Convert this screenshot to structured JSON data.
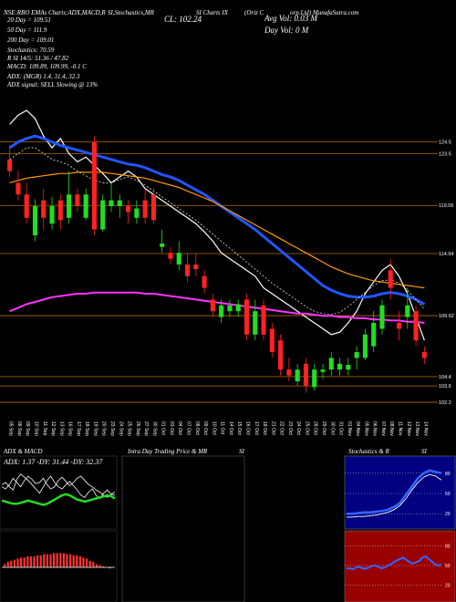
{
  "header": {
    "left_info": "NSE:RBO EMAs Charts:ADX,MACD,R",
    "mid_info": "SI,Stochastics,MR",
    "mid_info2": "SI Charts IX",
    "company": "(Oriz C",
    "site": "orp.Ltd) MunafaSutra.com",
    "close_label": "CL: 102.24",
    "avg_vol": "Avg Vol: 0.03 M",
    "day_vol": "Day Vol: 0   M",
    "ema20": "20  Day = 109.51",
    "ema50": "50  Day = 111.9",
    "ema200": "200  Day = 109.01",
    "stoch": "Stochastics: 70.59",
    "rsi_line": "R                   SI 14/5: 51.36  / 47.82",
    "macd": "MACD: 109.89,  109.99,  -0.1 C",
    "adx1": "ADX:                          (MGR) 1.4,  31.4,  32.3",
    "adx2": "ADX  signal: SELL  Slowing @ 13%"
  },
  "panels": {
    "adx_title": "ADX  & MACD",
    "adx_values": "ADX: 1.37  -DY: 31.44  -DY: 32.37",
    "intraday_title": "Intra  Day Trading Price  & MR",
    "intraday_si": "SI",
    "stoch_title": "Stochastics & R",
    "stoch_si": "SI"
  },
  "colors": {
    "up": "#22dd22",
    "down": "#ff2222",
    "ema20": "#ffffff",
    "ema50": "#2255ff",
    "ema100": "#ff9900",
    "ema200": "#ff33ff",
    "level_line": "#b36b00",
    "stoch_bg": "#000080",
    "rsi_bg": "#990000"
  },
  "chart_data": [
    {
      "type": "candlestick",
      "price_levels": [
        124.5,
        123.5,
        119.06,
        114.94,
        109.62,
        104.4,
        103.6,
        102.2
      ],
      "x_dates": [
        "05 Sep",
        "06 Sep",
        "09 Sep",
        "10 Sep",
        "11 Sep",
        "12 Sep",
        "13 Sep",
        "16 Sep",
        "17 Sep",
        "18 Sep",
        "19 Sep",
        "20 Sep",
        "23 Sep",
        "24 Sep",
        "25 Sep",
        "26 Sep",
        "27 Sep",
        "30 Sep",
        "01 Oct",
        "03 Oct",
        "04 Oct",
        "07 Oct",
        "08 Oct",
        "09 Oct",
        "10 Oct",
        "11 Oct",
        "14 Oct",
        "15 Oct",
        "16 Oct",
        "17 Oct",
        "18 Oct",
        "21 Oct",
        "22 Oct",
        "23 Oct",
        "24 Oct",
        "25 Oct",
        "28 Oct",
        "29 Oct",
        "30 Oct",
        "31 Oct",
        "01 Nov",
        "04 Nov",
        "05 Nov",
        "06 Nov",
        "07 Nov",
        "08 Nov",
        "11 Nov",
        "12 Nov",
        "13 Nov",
        "14 Nov"
      ],
      "candles": [
        {
          "o": 123.0,
          "h": 124.2,
          "l": 121.5,
          "c": 122.0
        },
        {
          "o": 121.0,
          "h": 122.0,
          "l": 119.5,
          "c": 120.0
        },
        {
          "o": 120.0,
          "h": 121.0,
          "l": 117.5,
          "c": 118.0
        },
        {
          "o": 116.5,
          "h": 119.6,
          "l": 116.0,
          "c": 119.0
        },
        {
          "o": 119.5,
          "h": 120.5,
          "l": 117.0,
          "c": 118.0
        },
        {
          "o": 117.5,
          "h": 119.8,
          "l": 117.0,
          "c": 119.0
        },
        {
          "o": 119.5,
          "h": 120.0,
          "l": 117.0,
          "c": 117.8
        },
        {
          "o": 118.0,
          "h": 122.0,
          "l": 117.5,
          "c": 120.0
        },
        {
          "o": 120.0,
          "h": 120.5,
          "l": 118.5,
          "c": 119.0
        },
        {
          "o": 118.0,
          "h": 120.5,
          "l": 117.8,
          "c": 120.0
        },
        {
          "o": 124.5,
          "h": 125.0,
          "l": 116.5,
          "c": 117.0
        },
        {
          "o": 117.0,
          "h": 120.0,
          "l": 116.8,
          "c": 119.5
        },
        {
          "o": 119.0,
          "h": 121.0,
          "l": 118.5,
          "c": 119.5
        },
        {
          "o": 119.0,
          "h": 120.0,
          "l": 118.0,
          "c": 119.5
        },
        {
          "o": 119.0,
          "h": 119.5,
          "l": 117.5,
          "c": 118.5
        },
        {
          "o": 118.0,
          "h": 119.5,
          "l": 117.5,
          "c": 118.8
        },
        {
          "o": 119.5,
          "h": 120.5,
          "l": 117.5,
          "c": 118.0
        },
        {
          "o": 120.0,
          "h": 120.5,
          "l": 117.5,
          "c": 117.8
        },
        {
          "o": 115.5,
          "h": 117.0,
          "l": 115.0,
          "c": 115.8
        },
        {
          "o": 115.0,
          "h": 115.5,
          "l": 114.0,
          "c": 114.5
        },
        {
          "o": 114.0,
          "h": 116.0,
          "l": 113.5,
          "c": 115.0
        },
        {
          "o": 114.0,
          "h": 115.0,
          "l": 112.5,
          "c": 113.0
        },
        {
          "o": 114.0,
          "h": 115.0,
          "l": 113.0,
          "c": 113.6
        },
        {
          "o": 113.0,
          "h": 113.5,
          "l": 111.5,
          "c": 112.0
        },
        {
          "o": 111.0,
          "h": 111.5,
          "l": 109.5,
          "c": 110.0
        },
        {
          "o": 109.5,
          "h": 111.0,
          "l": 109.0,
          "c": 110.5
        },
        {
          "o": 110.0,
          "h": 111.0,
          "l": 109.5,
          "c": 110.5
        },
        {
          "o": 110.0,
          "h": 111.0,
          "l": 109.5,
          "c": 110.6
        },
        {
          "o": 111.0,
          "h": 111.5,
          "l": 107.5,
          "c": 108.0
        },
        {
          "o": 108.0,
          "h": 111.0,
          "l": 107.5,
          "c": 110.0
        },
        {
          "o": 110.5,
          "h": 111.0,
          "l": 107.5,
          "c": 108.0
        },
        {
          "o": 108.5,
          "h": 109.0,
          "l": 106.0,
          "c": 106.5
        },
        {
          "o": 107.5,
          "h": 108.0,
          "l": 104.5,
          "c": 105.0
        },
        {
          "o": 105.0,
          "h": 106.0,
          "l": 104.0,
          "c": 104.5
        },
        {
          "o": 104.0,
          "h": 105.5,
          "l": 103.6,
          "c": 105.0
        },
        {
          "o": 105.5,
          "h": 106.0,
          "l": 103.0,
          "c": 103.6
        },
        {
          "o": 103.5,
          "h": 105.5,
          "l": 103.2,
          "c": 105.0
        },
        {
          "o": 104.8,
          "h": 105.5,
          "l": 104.2,
          "c": 105.0
        },
        {
          "o": 105.0,
          "h": 106.5,
          "l": 104.5,
          "c": 106.0
        },
        {
          "o": 105.0,
          "h": 106.0,
          "l": 104.5,
          "c": 105.5
        },
        {
          "o": 105.0,
          "h": 106.0,
          "l": 104.5,
          "c": 105.4
        },
        {
          "o": 106.0,
          "h": 107.0,
          "l": 105.0,
          "c": 106.5
        },
        {
          "o": 106.0,
          "h": 108.5,
          "l": 105.8,
          "c": 108.0
        },
        {
          "o": 107.0,
          "h": 110.0,
          "l": 106.5,
          "c": 109.0
        },
        {
          "o": 108.5,
          "h": 111.0,
          "l": 108.0,
          "c": 110.5
        },
        {
          "o": 113.5,
          "h": 114.5,
          "l": 111.0,
          "c": 112.0
        },
        {
          "o": 109.0,
          "h": 110.0,
          "l": 107.5,
          "c": 108.5
        },
        {
          "o": 109.5,
          "h": 112.0,
          "l": 108.5,
          "c": 110.5
        },
        {
          "o": 110.0,
          "h": 110.5,
          "l": 107.0,
          "c": 107.5
        },
        {
          "o": 106.5,
          "h": 107.0,
          "l": 105.5,
          "c": 106.0
        }
      ],
      "ylim": [
        101.5,
        126.5
      ]
    },
    {
      "type": "line",
      "series": [
        {
          "values": [
            126.0,
            126.8,
            127.2,
            126.5,
            125.0,
            124.0,
            124.8,
            123.5,
            122.8,
            123.2,
            122.5,
            121.8,
            121.0,
            121.5,
            122.0,
            121.5,
            120.5,
            120.0,
            119.5,
            119.0,
            118.5,
            118.0,
            117.5,
            116.8,
            116.0,
            115.0,
            114.5,
            114.0,
            113.5,
            113.0,
            112.0,
            111.5,
            111.0,
            110.5,
            110.0,
            109.5,
            109.0,
            108.5,
            108.0,
            108.2,
            109.0,
            110.0,
            111.5,
            112.5,
            113.5,
            114.0,
            113.0,
            111.5,
            109.5,
            107.5
          ]
        },
        {
          "values": [
            124.0,
            124.5,
            124.8,
            125.0,
            124.8,
            124.5,
            124.2,
            124.0,
            123.8,
            123.6,
            123.4,
            123.2,
            123.0,
            122.8,
            122.6,
            122.5,
            122.3,
            122.0,
            121.7,
            121.5,
            121.2,
            120.8,
            120.4,
            120.0,
            119.5,
            119.0,
            118.5,
            118.0,
            117.5,
            117.0,
            116.4,
            115.8,
            115.2,
            114.6,
            114.0,
            113.4,
            112.8,
            112.2,
            111.8,
            111.5,
            111.3,
            111.2,
            111.2,
            111.3,
            111.5,
            111.6,
            111.5,
            111.3,
            111.0,
            110.6
          ]
        },
        {
          "values": [
            121.0,
            121.2,
            121.4,
            121.5,
            121.6,
            121.7,
            121.8,
            121.8,
            121.9,
            121.9,
            121.9,
            121.9,
            121.8,
            121.7,
            121.6,
            121.5,
            121.4,
            121.2,
            121.0,
            120.8,
            120.6,
            120.3,
            120.0,
            119.7,
            119.4,
            119.0,
            118.6,
            118.2,
            117.8,
            117.4,
            117.0,
            116.6,
            116.2,
            115.8,
            115.4,
            115.0,
            114.6,
            114.2,
            113.8,
            113.5,
            113.2,
            113.0,
            112.8,
            112.6,
            112.5,
            112.4,
            112.3,
            112.2,
            112.1,
            112.0
          ]
        },
        {
          "values": [
            110.0,
            110.3,
            110.6,
            110.8,
            111.0,
            111.2,
            111.3,
            111.4,
            111.5,
            111.5,
            111.6,
            111.6,
            111.6,
            111.6,
            111.6,
            111.6,
            111.5,
            111.5,
            111.4,
            111.3,
            111.2,
            111.1,
            111.0,
            110.9,
            110.8,
            110.7,
            110.6,
            110.5,
            110.4,
            110.3,
            110.2,
            110.1,
            110.0,
            109.9,
            109.8,
            109.8,
            109.7,
            109.6,
            109.6,
            109.5,
            109.5,
            109.4,
            109.4,
            109.3,
            109.3,
            109.2,
            109.2,
            109.1,
            109.1,
            109.0
          ]
        },
        {
          "values": [
            123.0,
            123.5,
            124.0,
            124.0,
            123.5,
            123.0,
            122.8,
            122.5,
            122.0,
            121.6,
            121.2,
            121.0,
            121.0,
            121.3,
            121.5,
            121.2,
            120.8,
            120.3,
            119.8,
            119.3,
            118.8,
            118.3,
            117.8,
            117.2,
            116.6,
            116.0,
            115.4,
            114.8,
            114.2,
            113.6,
            113.0,
            112.4,
            111.9,
            111.4,
            110.9,
            110.4,
            110.0,
            109.8,
            109.7,
            109.9,
            110.4,
            111.0,
            111.6,
            112.2,
            112.6,
            112.7,
            112.4,
            111.8,
            111.0,
            110.2
          ]
        }
      ],
      "ylim": [
        101.5,
        126.5
      ]
    },
    {
      "type": "line",
      "series": [
        {
          "values": [
            40,
            42,
            38,
            35,
            45,
            50,
            47,
            44,
            40,
            36,
            32,
            38,
            44,
            48,
            42,
            38,
            36,
            40,
            43,
            39,
            35,
            30,
            28,
            33,
            36,
            30,
            27,
            32,
            35,
            31,
            30
          ]
        },
        {
          "values": [
            38,
            36,
            40,
            46,
            42,
            38,
            44,
            48,
            45,
            41,
            42,
            46,
            40,
            36,
            38,
            44,
            47,
            43,
            39,
            42,
            46,
            48,
            44,
            40,
            38,
            35,
            33,
            30,
            28,
            31,
            33
          ]
        },
        {
          "values": [
            25,
            24,
            23,
            22,
            22,
            23,
            24,
            25,
            24,
            23,
            22,
            21,
            22,
            24,
            26,
            28,
            30,
            31,
            30,
            28,
            26,
            25,
            24,
            25,
            26,
            27,
            28,
            29,
            30,
            29,
            27
          ]
        }
      ],
      "ylim": [
        0,
        60
      ]
    },
    {
      "type": "bar",
      "values": [
        0.3,
        0.5,
        0.6,
        0.7,
        0.8,
        0.9,
        0.9,
        1.0,
        1.0,
        1.0,
        1.1,
        1.1,
        1.2,
        1.2,
        1.2,
        1.3,
        1.3,
        1.3,
        1.3,
        1.2,
        1.2,
        1.1,
        1.1,
        1.0,
        0.9,
        0.8,
        0.6,
        0.5,
        0.3,
        0.2,
        0.1,
        0.0,
        -0.1
      ],
      "ylim": [
        -1.5,
        2.5
      ]
    },
    {
      "type": "line",
      "series": [
        {
          "values": [
            20,
            20,
            21,
            22,
            22,
            23,
            24,
            26,
            30,
            36,
            48,
            60,
            72,
            80,
            84,
            82,
            80
          ]
        },
        {
          "values": [
            15,
            15,
            16,
            16,
            17,
            18,
            20,
            22,
            26,
            32,
            42,
            55,
            66,
            74,
            78,
            76,
            70
          ]
        }
      ],
      "ticks": [
        80,
        50,
        20
      ],
      "ylim": [
        0,
        100
      ]
    },
    {
      "type": "line",
      "series": [
        {
          "values": [
            45,
            46,
            44,
            47,
            48,
            46,
            45,
            47,
            49,
            50,
            48,
            46,
            47,
            50,
            52,
            55,
            58,
            60,
            62,
            58,
            55,
            53,
            55,
            57,
            62,
            64,
            60,
            56,
            52,
            50,
            51
          ]
        }
      ],
      "ticks": [
        80,
        50,
        20
      ],
      "ylim": [
        0,
        100
      ]
    }
  ]
}
